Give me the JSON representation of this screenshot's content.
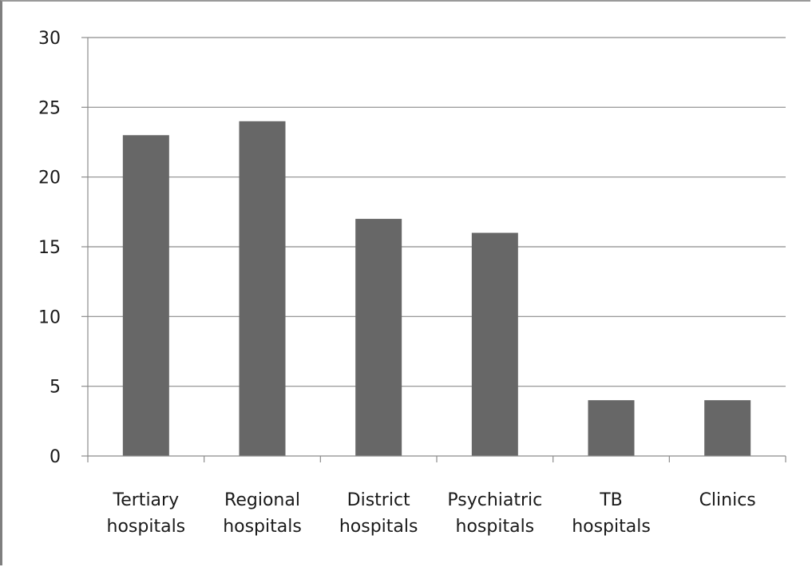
{
  "chart_data": {
    "type": "bar",
    "categories": [
      [
        "Tertiary",
        "hospitals"
      ],
      [
        "Regional",
        "hospitals"
      ],
      [
        "District",
        "hospitals"
      ],
      [
        "Psychiatric",
        "hospitals"
      ],
      [
        "TB",
        "hospitals"
      ],
      [
        "Clinics"
      ]
    ],
    "values": [
      23,
      24,
      17,
      16,
      4,
      4
    ],
    "ylim": [
      0,
      30
    ],
    "yticks": [
      "0",
      "5",
      "10",
      "15",
      "20",
      "25",
      "30"
    ],
    "grid": true,
    "legend": "none",
    "title": "",
    "xlabel": "",
    "ylabel": ""
  },
  "colors": {
    "bar": "#676767",
    "grid": "#8c8c8c",
    "axis": "#8c8c8c"
  }
}
